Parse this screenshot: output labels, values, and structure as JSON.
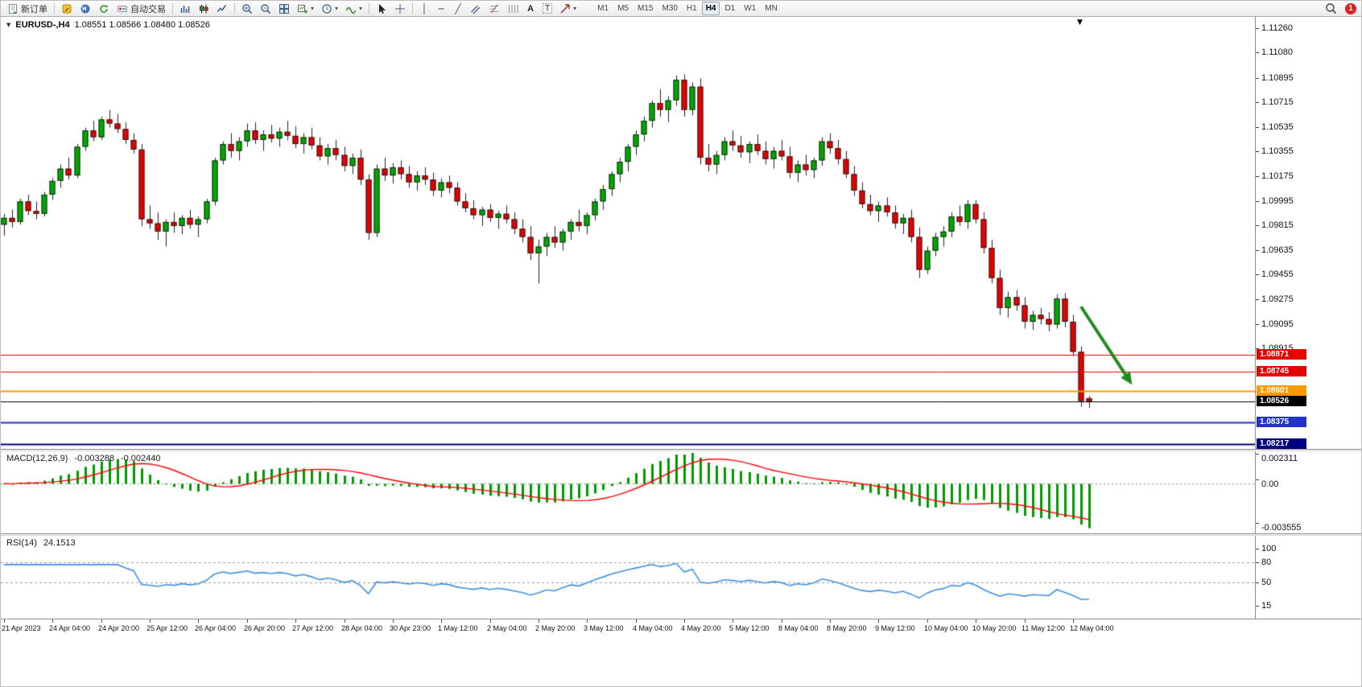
{
  "window": {
    "title_symbol": "EURUSD-,H4",
    "title_ohlc": "1.08551 1.08566 1.08480 1.08526"
  },
  "toolbar": {
    "new_order": "新订单",
    "auto_trading": "自动交易",
    "timeframes": [
      "M1",
      "M5",
      "M15",
      "M30",
      "H1",
      "H4",
      "D1",
      "W1",
      "MN"
    ],
    "active_timeframe": "H4",
    "notification_count": "1"
  },
  "colors": {
    "bull": "#00A800",
    "bear": "#E60000",
    "wick": "#222222",
    "macd_hist": "#009900",
    "macd_signal": "#FF0000",
    "rsi_line": "#4090E0",
    "arrow": "#1E8C1E"
  },
  "price_axis": {
    "labels": [
      "1.11260",
      "1.11080",
      "1.10895",
      "1.10715",
      "1.10535",
      "1.10355",
      "1.10175",
      "1.09995",
      "1.09815",
      "1.09635",
      "1.09455",
      "1.09275",
      "1.09095",
      "1.08915"
    ]
  },
  "indicators": {
    "macd": {
      "label": "MACD(12,26,9)",
      "value_main": "-0.003288",
      "value_signal": "-0.002440",
      "axis_labels": [
        "0.002311",
        "0.00",
        "-0.003555"
      ],
      "ylim": [
        -0.003555,
        0.002311
      ],
      "params": [
        12,
        26,
        9
      ]
    },
    "rsi": {
      "label": "RSI(14)",
      "value": "24.1513",
      "axis_labels": [
        "100",
        "80",
        "50",
        "15"
      ],
      "levels": [
        80,
        50
      ],
      "params": [
        14
      ]
    }
  },
  "chart_data": {
    "type": "candlestick",
    "symbol": "EURUSD-",
    "period": "H4",
    "ylim": [
      1.0818,
      1.1134
    ],
    "x_tick_interval_bars": 6,
    "x_tick_labels": [
      "21 Apr 2023",
      "24 Apr 04:00",
      "24 Apr 20:00",
      "25 Apr 12:00",
      "26 Apr 04:00",
      "26 Apr 20:00",
      "27 Apr 12:00",
      "28 Apr 04:00",
      "30 Apr 23:00",
      "1 May 12:00",
      "2 May 04:00",
      "2 May 20:00",
      "3 May 12:00",
      "4 May 04:00",
      "4 May 20:00",
      "5 May 12:00",
      "8 May 04:00",
      "8 May 20:00",
      "9 May 12:00",
      "10 May 04:00",
      "10 May 20:00",
      "11 May 12:00",
      "12 May 04:00"
    ],
    "hlines": [
      {
        "price": 1.08871,
        "color": "#E60000",
        "width": 1,
        "label": "1.08871"
      },
      {
        "price": 1.08745,
        "color": "#E60000",
        "width": 1,
        "label": "1.08745"
      },
      {
        "price": 1.08601,
        "color": "#FF9900",
        "width": 2,
        "label": "1.08601"
      },
      {
        "price": 1.08526,
        "color": "#000000",
        "width": 1,
        "label": "1.08526",
        "role": "current-price"
      },
      {
        "price": 1.08375,
        "color": "#2233CC",
        "width": 2,
        "label": "1.08375"
      },
      {
        "price": 1.08217,
        "color": "#000080",
        "width": 2,
        "label": "1.08217"
      }
    ],
    "annotation_arrow": {
      "type": "arrow",
      "color": "#1E8C1E",
      "from": {
        "bar": 133,
        "price": 1.0922
      },
      "to": {
        "bar": 139.3,
        "price": 1.0865
      }
    },
    "candles": [
      [
        1.0982,
        1.099,
        1.0974,
        1.0987
      ],
      [
        1.0987,
        1.0993,
        1.098,
        1.0984
      ],
      [
        1.0984,
        1.1001,
        1.0982,
        1.0999
      ],
      [
        1.0999,
        1.1004,
        1.0989,
        1.0992
      ],
      [
        1.0992,
        1.0999,
        1.0986,
        1.099
      ],
      [
        1.099,
        1.1006,
        1.0988,
        1.1004
      ],
      [
        1.1004,
        1.1016,
        1.1,
        1.1014
      ],
      [
        1.1014,
        1.1026,
        1.1009,
        1.1023
      ],
      [
        1.1023,
        1.1031,
        1.1015,
        1.1018
      ],
      [
        1.1018,
        1.1041,
        1.1016,
        1.1039
      ],
      [
        1.1039,
        1.1053,
        1.1036,
        1.1051
      ],
      [
        1.1051,
        1.1058,
        1.1043,
        1.1046
      ],
      [
        1.1046,
        1.1061,
        1.1044,
        1.1059
      ],
      [
        1.1059,
        1.1066,
        1.1053,
        1.1056
      ],
      [
        1.1056,
        1.1063,
        1.1049,
        1.1052
      ],
      [
        1.1052,
        1.1057,
        1.1041,
        1.1044
      ],
      [
        1.1044,
        1.1049,
        1.1034,
        1.1037
      ],
      [
        1.1037,
        1.1041,
        1.0981,
        1.0986
      ],
      [
        1.0986,
        1.0996,
        1.0979,
        1.0983
      ],
      [
        1.0983,
        1.0991,
        1.0971,
        1.0977
      ],
      [
        1.0977,
        1.0986,
        1.0966,
        1.0984
      ],
      [
        1.0984,
        1.0991,
        1.0976,
        1.0981
      ],
      [
        1.0981,
        1.0989,
        1.0975,
        1.0987
      ],
      [
        1.0987,
        1.0993,
        1.0979,
        1.0982
      ],
      [
        1.0982,
        1.0988,
        1.0973,
        1.0986
      ],
      [
        1.0986,
        1.1001,
        1.0983,
        1.0999
      ],
      [
        1.0999,
        1.1031,
        1.0996,
        1.1029
      ],
      [
        1.1029,
        1.1043,
        1.1026,
        1.1041
      ],
      [
        1.1041,
        1.1049,
        1.1031,
        1.1036
      ],
      [
        1.1036,
        1.1046,
        1.1029,
        1.1043
      ],
      [
        1.1043,
        1.1056,
        1.1039,
        1.1051
      ],
      [
        1.1051,
        1.1057,
        1.1041,
        1.1044
      ],
      [
        1.1044,
        1.1051,
        1.1036,
        1.1048
      ],
      [
        1.1048,
        1.1055,
        1.1042,
        1.1045
      ],
      [
        1.1045,
        1.1053,
        1.1039,
        1.105
      ],
      [
        1.105,
        1.1058,
        1.1044,
        1.1047
      ],
      [
        1.1047,
        1.1054,
        1.1038,
        1.1041
      ],
      [
        1.1041,
        1.1049,
        1.1034,
        1.1046
      ],
      [
        1.1046,
        1.1053,
        1.1037,
        1.104
      ],
      [
        1.104,
        1.1046,
        1.1029,
        1.1032
      ],
      [
        1.1032,
        1.1041,
        1.1026,
        1.1038
      ],
      [
        1.1038,
        1.1044,
        1.1029,
        1.1033
      ],
      [
        1.1033,
        1.1039,
        1.1021,
        1.1025
      ],
      [
        1.1025,
        1.1034,
        1.1019,
        1.1031
      ],
      [
        1.1031,
        1.1037,
        1.1011,
        1.1015
      ],
      [
        1.1015,
        1.1019,
        1.0971,
        1.0976
      ],
      [
        1.0976,
        1.1026,
        1.0973,
        1.1023
      ],
      [
        1.1023,
        1.1031,
        1.1014,
        1.1018
      ],
      [
        1.1018,
        1.1027,
        1.1012,
        1.1024
      ],
      [
        1.1024,
        1.1029,
        1.1015,
        1.1019
      ],
      [
        1.1019,
        1.1025,
        1.1009,
        1.1013
      ],
      [
        1.1013,
        1.1021,
        1.1007,
        1.1018
      ],
      [
        1.1018,
        1.1024,
        1.1011,
        1.1015
      ],
      [
        1.1015,
        1.102,
        1.1003,
        1.1007
      ],
      [
        1.1007,
        1.1016,
        1.1002,
        1.1013
      ],
      [
        1.1013,
        1.1018,
        1.1005,
        1.1009
      ],
      [
        1.1009,
        1.1013,
        1.0996,
        1.0999
      ],
      [
        1.0999,
        1.1005,
        1.0991,
        1.0994
      ],
      [
        1.0994,
        1.1,
        1.0986,
        1.0989
      ],
      [
        1.0989,
        1.0995,
        1.0981,
        1.0993
      ],
      [
        1.0993,
        1.0997,
        1.0984,
        1.0987
      ],
      [
        1.0987,
        1.0992,
        1.0979,
        1.099
      ],
      [
        1.099,
        1.0996,
        1.0983,
        1.0986
      ],
      [
        1.0986,
        1.0991,
        1.0975,
        1.0979
      ],
      [
        1.0979,
        1.0986,
        1.0969,
        1.0973
      ],
      [
        1.0973,
        1.0981,
        1.0956,
        1.0961
      ],
      [
        1.0961,
        1.0971,
        1.0939,
        1.0966
      ],
      [
        1.0966,
        1.0976,
        1.0959,
        1.0973
      ],
      [
        1.0973,
        1.0981,
        1.0965,
        1.0969
      ],
      [
        1.0969,
        1.0979,
        1.0963,
        1.0977
      ],
      [
        1.0977,
        1.0986,
        1.0971,
        1.0984
      ],
      [
        1.0984,
        1.0993,
        1.0977,
        1.0981
      ],
      [
        1.0981,
        1.0991,
        1.0975,
        1.0989
      ],
      [
        1.0989,
        1.1001,
        1.0985,
        1.0999
      ],
      [
        1.0999,
        1.1011,
        1.0993,
        1.1008
      ],
      [
        1.1008,
        1.1021,
        1.1003,
        1.1019
      ],
      [
        1.1019,
        1.1031,
        1.1013,
        1.1028
      ],
      [
        1.1028,
        1.1041,
        1.1021,
        1.1039
      ],
      [
        1.1039,
        1.1051,
        1.1033,
        1.1048
      ],
      [
        1.1048,
        1.1061,
        1.1043,
        1.1058
      ],
      [
        1.1058,
        1.1073,
        1.1053,
        1.1071
      ],
      [
        1.1071,
        1.1081,
        1.1061,
        1.1066
      ],
      [
        1.1066,
        1.1076,
        1.1057,
        1.1073
      ],
      [
        1.1073,
        1.1091,
        1.1069,
        1.1088
      ],
      [
        1.1088,
        1.1092,
        1.1061,
        1.1066
      ],
      [
        1.1066,
        1.1086,
        1.1062,
        1.1083
      ],
      [
        1.1083,
        1.1089,
        1.1026,
        1.1031
      ],
      [
        1.1031,
        1.1041,
        1.1021,
        1.1026
      ],
      [
        1.1026,
        1.1036,
        1.1019,
        1.1033
      ],
      [
        1.1033,
        1.1046,
        1.1029,
        1.1043
      ],
      [
        1.1043,
        1.1051,
        1.1036,
        1.104
      ],
      [
        1.104,
        1.1047,
        1.1031,
        1.1035
      ],
      [
        1.1035,
        1.1043,
        1.1027,
        1.1041
      ],
      [
        1.1041,
        1.1048,
        1.1033,
        1.1036
      ],
      [
        1.1036,
        1.1043,
        1.1026,
        1.103
      ],
      [
        1.103,
        1.1039,
        1.1023,
        1.1036
      ],
      [
        1.1036,
        1.1044,
        1.1029,
        1.1032
      ],
      [
        1.1032,
        1.1039,
        1.1016,
        1.102
      ],
      [
        1.102,
        1.1029,
        1.1013,
        1.1026
      ],
      [
        1.1026,
        1.1033,
        1.1018,
        1.1022
      ],
      [
        1.1022,
        1.1031,
        1.1016,
        1.1029
      ],
      [
        1.1029,
        1.1046,
        1.1025,
        1.1043
      ],
      [
        1.1043,
        1.1049,
        1.1034,
        1.1038
      ],
      [
        1.1038,
        1.1044,
        1.1026,
        1.103
      ],
      [
        1.103,
        1.1036,
        1.1016,
        1.1019
      ],
      [
        1.1019,
        1.1025,
        1.1003,
        1.1007
      ],
      [
        1.1007,
        1.1013,
        1.0994,
        1.0997
      ],
      [
        1.0997,
        1.1004,
        1.0989,
        1.0992
      ],
      [
        1.0992,
        1.0999,
        1.0984,
        1.0996
      ],
      [
        1.0996,
        1.1002,
        1.0988,
        1.0991
      ],
      [
        1.0991,
        1.0996,
        1.0979,
        1.0983
      ],
      [
        1.0983,
        1.099,
        1.0975,
        1.0987
      ],
      [
        1.0987,
        1.0993,
        1.0969,
        1.0973
      ],
      [
        1.0973,
        1.098,
        1.0943,
        1.0949
      ],
      [
        1.0949,
        1.0966,
        1.0946,
        1.0963
      ],
      [
        1.0963,
        1.0976,
        1.0959,
        1.0973
      ],
      [
        1.0973,
        1.0981,
        1.0966,
        1.0977
      ],
      [
        1.0977,
        1.0991,
        1.0973,
        1.0988
      ],
      [
        1.0988,
        1.0996,
        1.0981,
        1.0984
      ],
      [
        1.0984,
        1.1,
        1.0979,
        1.0997
      ],
      [
        1.0997,
        1.1,
        1.0983,
        1.0986
      ],
      [
        1.0986,
        1.0991,
        1.0961,
        1.0965
      ],
      [
        1.0965,
        1.0971,
        1.0939,
        1.0943
      ],
      [
        1.0943,
        1.0949,
        1.0916,
        1.0921
      ],
      [
        1.0921,
        1.0933,
        1.0914,
        1.0929
      ],
      [
        1.0929,
        1.0934,
        1.0919,
        1.0923
      ],
      [
        1.0923,
        1.0929,
        1.0906,
        1.0911
      ],
      [
        1.0911,
        1.0919,
        1.0905,
        1.0916
      ],
      [
        1.0916,
        1.0921,
        1.0909,
        1.0913
      ],
      [
        1.0913,
        1.0918,
        1.0904,
        1.0909
      ],
      [
        1.0909,
        1.0931,
        1.0906,
        1.0928
      ],
      [
        1.0928,
        1.0932,
        1.0907,
        1.0911
      ],
      [
        1.0911,
        1.0916,
        1.0886,
        1.0889
      ],
      [
        1.0889,
        1.0893,
        1.0849,
        1.0853
      ],
      [
        1.08551,
        1.08566,
        1.0848,
        1.08526
      ]
    ]
  }
}
